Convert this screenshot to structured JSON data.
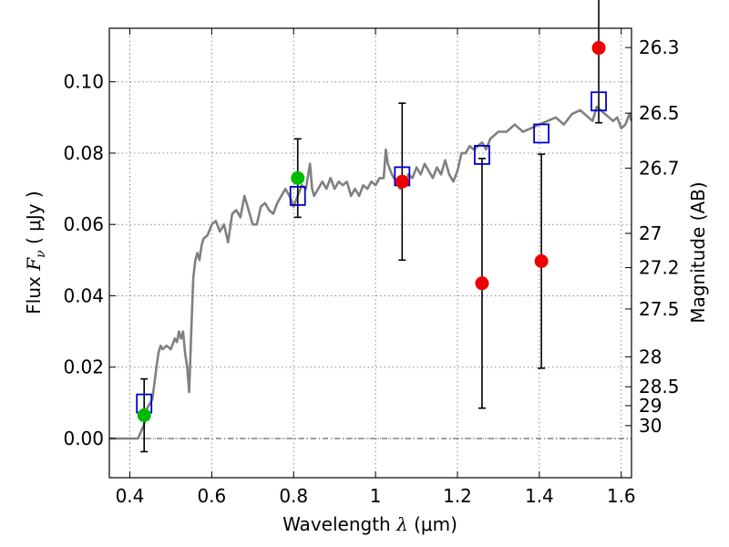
{
  "chart_data": {
    "type": "scatter",
    "xlabel": {
      "prefix": "Wavelength ",
      "symbol": "λ",
      "unit": " (μm)"
    },
    "ylabel": {
      "prefix": "Flux ",
      "symbol": "F",
      "subscript": "ν",
      "unit": " ( μJy )"
    },
    "y2label": "Magnitude (AB)",
    "xlim": [
      0.35,
      1.625
    ],
    "ylim": [
      -0.011,
      0.115
    ],
    "grid": true,
    "x_ticks": [
      0.4,
      0.6,
      0.8,
      1.0,
      1.2,
      1.4,
      1.6
    ],
    "x_tick_labels": [
      "0.4",
      "0.6",
      "0.8",
      "1",
      "1.2",
      "1.4",
      "1.6"
    ],
    "y_ticks": [
      0.0,
      0.02,
      0.04,
      0.06,
      0.08,
      0.1
    ],
    "y_tick_labels": [
      "0.00",
      "0.02",
      "0.04",
      "0.06",
      "0.08",
      "0.10"
    ],
    "y2_ticks": [
      {
        "label": "26.3",
        "flux": 0.1096
      },
      {
        "label": "26.5",
        "flux": 0.0912
      },
      {
        "label": "26.7",
        "flux": 0.0758
      },
      {
        "label": "27",
        "flux": 0.0575
      },
      {
        "label": "27.2",
        "flux": 0.0479
      },
      {
        "label": "27.5",
        "flux": 0.0363
      },
      {
        "label": "28",
        "flux": 0.0229
      },
      {
        "label": "28.5",
        "flux": 0.0145
      },
      {
        "label": "29",
        "flux": 0.0092
      },
      {
        "label": "30",
        "flux": 0.0036
      }
    ],
    "model_spectrum": {
      "color": "#808080",
      "points": [
        [
          0.35,
          0.0
        ],
        [
          0.4,
          0.0
        ],
        [
          0.42,
          0.0
        ],
        [
          0.435,
          0.004
        ],
        [
          0.44,
          0.008
        ],
        [
          0.455,
          0.011
        ],
        [
          0.465,
          0.02
        ],
        [
          0.47,
          0.024
        ],
        [
          0.475,
          0.026
        ],
        [
          0.48,
          0.025
        ],
        [
          0.49,
          0.026
        ],
        [
          0.5,
          0.025
        ],
        [
          0.51,
          0.028
        ],
        [
          0.515,
          0.027
        ],
        [
          0.52,
          0.03
        ],
        [
          0.525,
          0.028
        ],
        [
          0.53,
          0.03
        ],
        [
          0.535,
          0.024
        ],
        [
          0.54,
          0.02
        ],
        [
          0.545,
          0.013
        ],
        [
          0.55,
          0.03
        ],
        [
          0.555,
          0.045
        ],
        [
          0.56,
          0.05
        ],
        [
          0.565,
          0.052
        ],
        [
          0.57,
          0.05
        ],
        [
          0.575,
          0.054
        ],
        [
          0.58,
          0.056
        ],
        [
          0.59,
          0.057
        ],
        [
          0.6,
          0.06
        ],
        [
          0.61,
          0.061
        ],
        [
          0.62,
          0.058
        ],
        [
          0.63,
          0.06
        ],
        [
          0.64,
          0.055
        ],
        [
          0.65,
          0.063
        ],
        [
          0.66,
          0.064
        ],
        [
          0.67,
          0.062
        ],
        [
          0.68,
          0.068
        ],
        [
          0.69,
          0.064
        ],
        [
          0.7,
          0.06
        ],
        [
          0.71,
          0.06
        ],
        [
          0.72,
          0.065
        ],
        [
          0.73,
          0.066
        ],
        [
          0.74,
          0.064
        ],
        [
          0.75,
          0.063
        ],
        [
          0.76,
          0.066
        ],
        [
          0.77,
          0.068
        ],
        [
          0.78,
          0.07
        ],
        [
          0.79,
          0.068
        ],
        [
          0.8,
          0.065
        ],
        [
          0.81,
          0.068
        ],
        [
          0.82,
          0.071
        ],
        [
          0.83,
          0.07
        ],
        [
          0.84,
          0.077
        ],
        [
          0.845,
          0.07
        ],
        [
          0.85,
          0.068
        ],
        [
          0.86,
          0.07
        ],
        [
          0.87,
          0.072
        ],
        [
          0.88,
          0.07
        ],
        [
          0.89,
          0.073
        ],
        [
          0.9,
          0.07
        ],
        [
          0.91,
          0.072
        ],
        [
          0.92,
          0.071
        ],
        [
          0.93,
          0.072
        ],
        [
          0.94,
          0.068
        ],
        [
          0.95,
          0.07
        ],
        [
          0.96,
          0.068
        ],
        [
          0.97,
          0.071
        ],
        [
          0.98,
          0.07
        ],
        [
          0.99,
          0.072
        ],
        [
          1.0,
          0.071
        ],
        [
          1.01,
          0.073
        ],
        [
          1.02,
          0.073
        ],
        [
          1.025,
          0.081
        ],
        [
          1.03,
          0.077
        ],
        [
          1.04,
          0.074
        ],
        [
          1.05,
          0.072
        ],
        [
          1.06,
          0.07
        ],
        [
          1.07,
          0.071
        ],
        [
          1.08,
          0.074
        ],
        [
          1.09,
          0.073
        ],
        [
          1.1,
          0.076
        ],
        [
          1.11,
          0.074
        ],
        [
          1.12,
          0.077
        ],
        [
          1.13,
          0.075
        ],
        [
          1.14,
          0.073
        ],
        [
          1.15,
          0.076
        ],
        [
          1.16,
          0.074
        ],
        [
          1.17,
          0.078
        ],
        [
          1.18,
          0.074
        ],
        [
          1.19,
          0.072
        ],
        [
          1.2,
          0.075
        ],
        [
          1.21,
          0.08
        ],
        [
          1.22,
          0.08
        ],
        [
          1.23,
          0.082
        ],
        [
          1.24,
          0.081
        ],
        [
          1.25,
          0.082
        ],
        [
          1.26,
          0.083
        ],
        [
          1.27,
          0.081
        ],
        [
          1.28,
          0.084
        ],
        [
          1.3,
          0.086
        ],
        [
          1.32,
          0.086
        ],
        [
          1.34,
          0.088
        ],
        [
          1.36,
          0.086
        ],
        [
          1.38,
          0.087
        ],
        [
          1.4,
          0.088
        ],
        [
          1.42,
          0.089
        ],
        [
          1.44,
          0.09
        ],
        [
          1.46,
          0.088
        ],
        [
          1.48,
          0.091
        ],
        [
          1.5,
          0.092
        ],
        [
          1.51,
          0.091
        ],
        [
          1.52,
          0.09
        ],
        [
          1.53,
          0.089
        ],
        [
          1.54,
          0.093
        ],
        [
          1.55,
          0.092
        ],
        [
          1.56,
          0.091
        ],
        [
          1.57,
          0.09
        ],
        [
          1.58,
          0.089
        ],
        [
          1.59,
          0.09
        ],
        [
          1.6,
          0.087
        ],
        [
          1.61,
          0.088
        ],
        [
          1.62,
          0.091
        ],
        [
          1.625,
          0.089
        ]
      ]
    },
    "model_photometry": {
      "color": "#0000cc",
      "points": [
        {
          "x": 0.435,
          "y": 0.0098
        },
        {
          "x": 0.81,
          "y": 0.068
        },
        {
          "x": 1.065,
          "y": 0.0735
        },
        {
          "x": 1.26,
          "y": 0.0795
        },
        {
          "x": 1.405,
          "y": 0.0855
        },
        {
          "x": 1.545,
          "y": 0.0945
        }
      ]
    },
    "observed_green": {
      "color": "#00bb00",
      "points": [
        {
          "x": 0.435,
          "y": 0.0065,
          "err": 0.0102
        },
        {
          "x": 0.81,
          "y": 0.073,
          "err": 0.011
        }
      ]
    },
    "observed_red": {
      "color": "#ee0000",
      "points": [
        {
          "x": 1.065,
          "y": 0.072,
          "err": 0.022
        },
        {
          "x": 1.26,
          "y": 0.0435,
          "err": 0.035
        },
        {
          "x": 1.405,
          "y": 0.0497,
          "err": 0.03
        },
        {
          "x": 1.545,
          "y": 0.1095,
          "err": 0.021
        }
      ]
    },
    "baseline": {
      "y": 0.0,
      "style": "dash-dot",
      "color": "#404040"
    }
  }
}
